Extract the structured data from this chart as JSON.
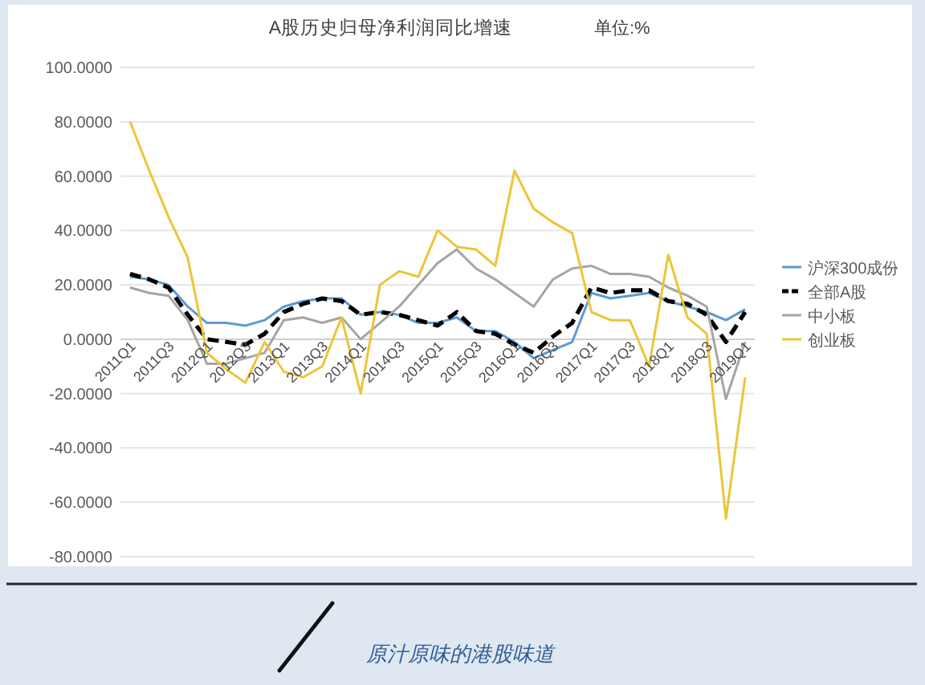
{
  "chart_data": {
    "type": "line",
    "title": "A股历史归母净利润同比增速",
    "subtitle": "单位:%",
    "categories": [
      "2011Q1",
      null,
      "2011Q3",
      null,
      "2012Q1",
      null,
      "2012Q3",
      null,
      "2013Q1",
      null,
      "2013Q3",
      null,
      "2014Q1",
      null,
      "2014Q3",
      null,
      "2015Q1",
      null,
      "2015Q3",
      null,
      "2016Q1",
      null,
      "2016Q3",
      null,
      "2017Q1",
      null,
      "2017Q3",
      null,
      "2018Q1",
      null,
      "2018Q3",
      null,
      "2019Q1"
    ],
    "series": [
      {
        "name": "沪深300成份",
        "color": "#5b9bd5",
        "values": [
          23,
          22,
          20,
          12,
          6,
          6,
          5,
          7,
          12,
          14,
          15,
          15,
          9,
          10,
          9,
          6,
          6,
          8,
          3,
          3,
          -1,
          -7,
          -4,
          -1,
          17,
          15,
          16,
          17,
          14,
          12,
          10,
          7,
          11
        ]
      },
      {
        "name": "全部A股",
        "color": "#000000",
        "line_style": "dashed",
        "values": [
          24,
          22,
          19,
          9,
          0,
          -1,
          -2,
          2,
          10,
          13,
          15,
          14,
          9,
          10,
          9,
          7,
          5,
          10,
          3,
          2,
          -2,
          -5,
          1,
          6,
          19,
          17,
          18,
          18,
          14,
          13,
          9,
          -1,
          10
        ]
      },
      {
        "name": "中小板",
        "color": "#a5a5a5",
        "values": [
          19,
          17,
          16,
          7,
          -9,
          -9,
          -7,
          -5,
          7,
          8,
          6,
          8,
          0,
          6,
          12,
          20,
          28,
          33,
          26,
          22,
          17,
          12,
          22,
          26,
          27,
          24,
          24,
          23,
          19,
          16,
          12,
          -22,
          -1
        ]
      },
      {
        "name": "创业板",
        "color": "#ecc537",
        "values": [
          80,
          62,
          45,
          30,
          -5,
          -11,
          -16,
          -1,
          -12,
          -14,
          -10,
          8,
          -20,
          20,
          25,
          23,
          40,
          34,
          33,
          27,
          62,
          48,
          43,
          39,
          10,
          7,
          7,
          -10,
          31,
          8,
          2,
          -66,
          -14
        ]
      }
    ],
    "ylim": [
      -80,
      100
    ],
    "yticks": [
      {
        "value": -80,
        "label": "-80.0000"
      },
      {
        "value": -60,
        "label": "-60.0000"
      },
      {
        "value": -40,
        "label": "-40.0000"
      },
      {
        "value": -20,
        "label": "-20.0000"
      },
      {
        "value": 0,
        "label": "0.0000"
      },
      {
        "value": 20,
        "label": "20.0000"
      },
      {
        "value": 40,
        "label": "40.0000"
      },
      {
        "value": 60,
        "label": "60.0000"
      },
      {
        "value": 80,
        "label": "80.0000"
      },
      {
        "value": 100,
        "label": "100.0000"
      }
    ],
    "grid": "y",
    "legend": "right",
    "line_style": "solid",
    "annotations": [
      "原汁原味的港股味道"
    ]
  }
}
